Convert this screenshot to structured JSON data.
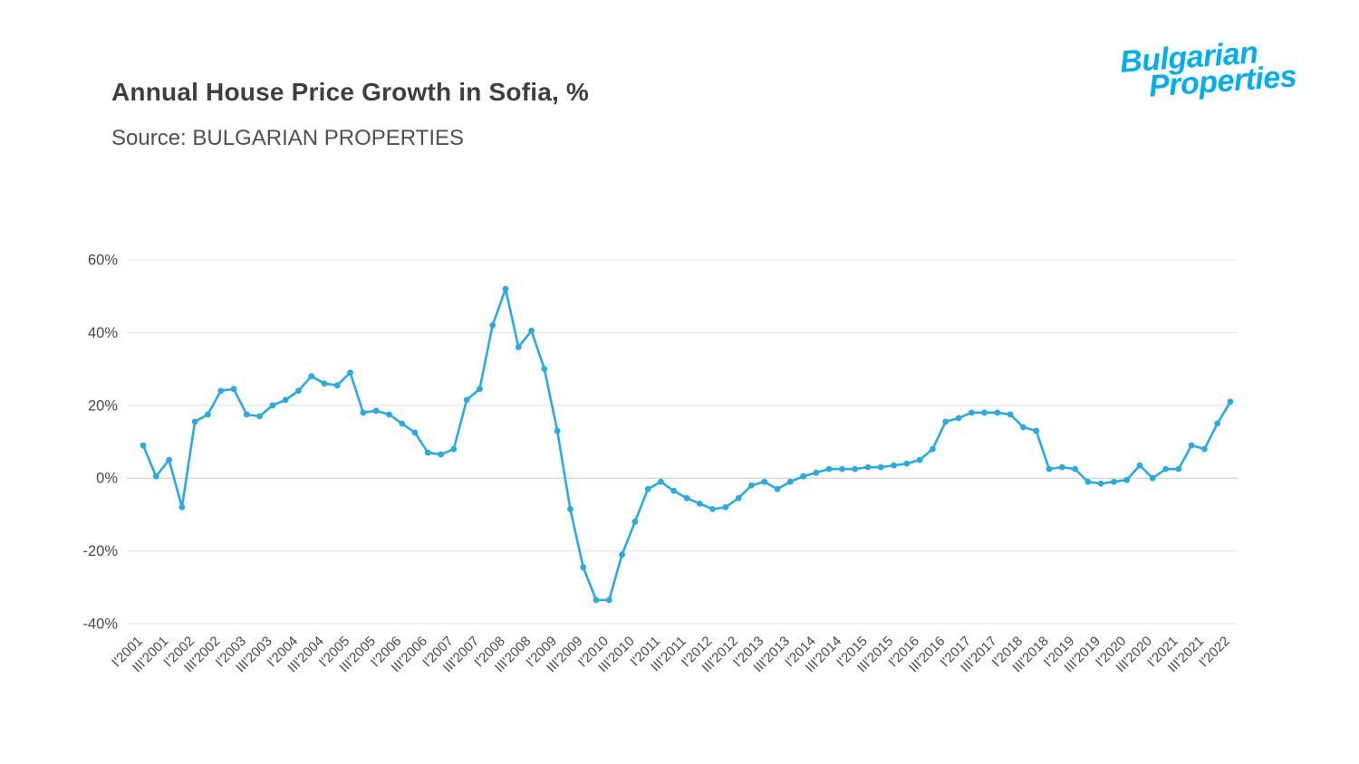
{
  "header": {
    "title": "Annual House Price Growth in Sofia, %",
    "source": "Source: BULGARIAN PROPERTIES"
  },
  "logo": {
    "line1": "Bulgarian",
    "line2": "Properties",
    "color": "#00aeef"
  },
  "chart_data": {
    "type": "line",
    "title": "Annual House Price Growth in Sofia, %",
    "subtitle": "Source: BULGARIAN PROPERTIES",
    "xlabel": "",
    "ylabel": "",
    "ylim": [
      -40,
      60
    ],
    "y_ticks": [
      60,
      40,
      20,
      0,
      -20,
      -40
    ],
    "y_tick_suffix": "%",
    "grid": true,
    "legend": "none",
    "line_color": "#29abe2",
    "marker_color": "#29abe2",
    "grid_color": "#e4e4e4",
    "zero_line_color": "#c9c9c9",
    "points_per_tick": 2,
    "x_tick_labels": [
      "I'2001",
      "III'2001",
      "I'2002",
      "III'2002",
      "I'2003",
      "III'2003",
      "I'2004",
      "III'2004",
      "I'2005",
      "III'2005",
      "I'2006",
      "III'2006",
      "I'2007",
      "III'2007",
      "I'2008",
      "III'2008",
      "I'2009",
      "III'2009",
      "I'2010",
      "III'2010",
      "I'2011",
      "III'2011",
      "I'2012",
      "III'2012",
      "I'2013",
      "III'2013",
      "I'2014",
      "III'2014",
      "I'2015",
      "III'2015",
      "I'2016",
      "III'2016",
      "I'2017",
      "III'2017",
      "I'2018",
      "III'2018",
      "I'2019",
      "III'2019",
      "I'2020",
      "III'2020",
      "I'2021",
      "III'2021",
      "I'2022"
    ],
    "values": [
      9,
      0.5,
      5,
      -8,
      15.5,
      17.5,
      24,
      24.5,
      17.5,
      17,
      20,
      21.5,
      24,
      28,
      26,
      25.5,
      29,
      18,
      18.5,
      17.5,
      15,
      12.5,
      7,
      6.5,
      8,
      21.5,
      24.5,
      42,
      52,
      36,
      40.5,
      30,
      13,
      -8.5,
      -24.5,
      -33.5,
      -33.5,
      -21,
      -12,
      -3,
      -1,
      -3.5,
      -5.5,
      -7,
      -8.5,
      -8,
      -5.5,
      -2,
      -1,
      -3,
      -1,
      0.5,
      1.5,
      2.5,
      2.5,
      2.5,
      3,
      3,
      3.5,
      4,
      5,
      8,
      15.5,
      16.5,
      18,
      18,
      18,
      17.5,
      14,
      13,
      2.5,
      3,
      2.5,
      -1,
      -1.5,
      -1,
      -0.5,
      3.5,
      0,
      2.5,
      2.5,
      9,
      8,
      15,
      21
    ]
  }
}
